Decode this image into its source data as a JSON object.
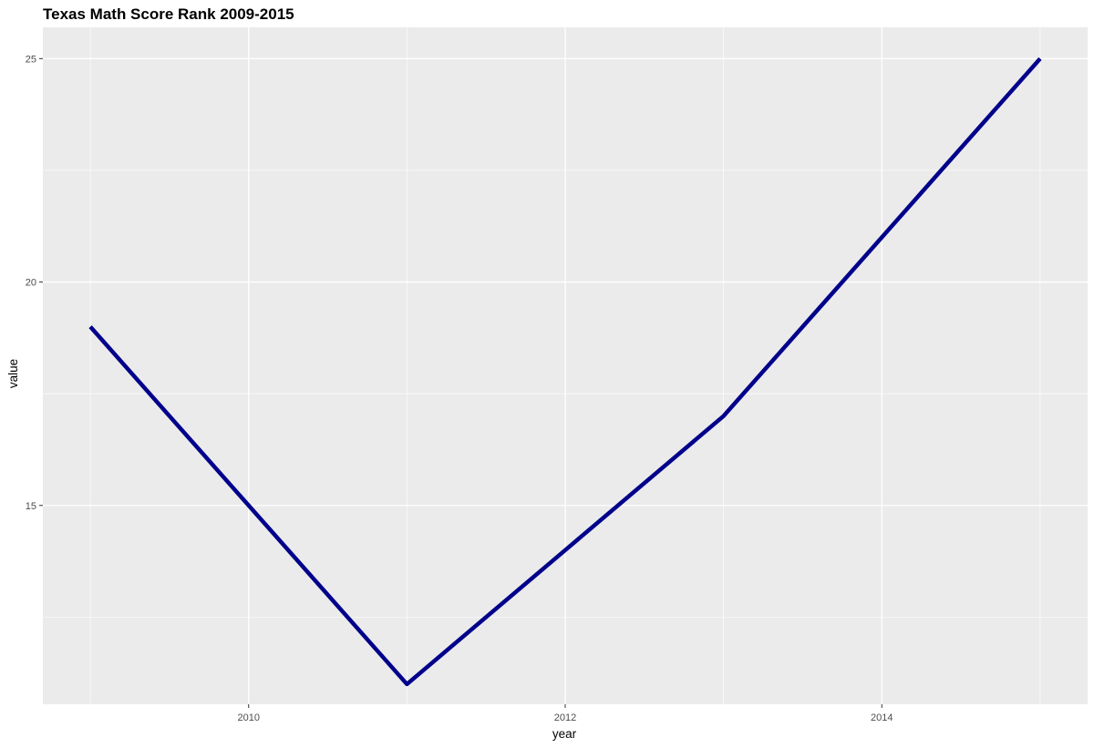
{
  "chart_data": {
    "type": "line",
    "title": "Texas Math Score Rank 2009-2015",
    "xlabel": "year",
    "ylabel": "value",
    "x": [
      2009,
      2010,
      2011,
      2012,
      2013,
      2014,
      2015
    ],
    "series": [
      {
        "values": [
          19,
          15,
          11,
          14,
          17,
          21,
          25
        ],
        "color": "#00008B"
      }
    ],
    "xlim": [
      2008.7,
      2015.3
    ],
    "ylim": [
      10.55,
      25.7
    ],
    "x_ticks": [
      2010,
      2012,
      2014
    ],
    "x_tick_labels": [
      "2010",
      "2012",
      "2014"
    ],
    "y_ticks": [
      15,
      20,
      25
    ],
    "y_tick_labels": [
      "15",
      "20",
      "25"
    ],
    "x_minor_ticks": [
      2009,
      2011,
      2013,
      2015
    ],
    "y_minor_ticks": [
      12.5,
      17.5,
      22.5
    ],
    "grid": true,
    "panel_background": "#EBEBEB",
    "grid_color": "#FFFFFF",
    "tick_color": "#333333",
    "line_color": "#00008B"
  }
}
